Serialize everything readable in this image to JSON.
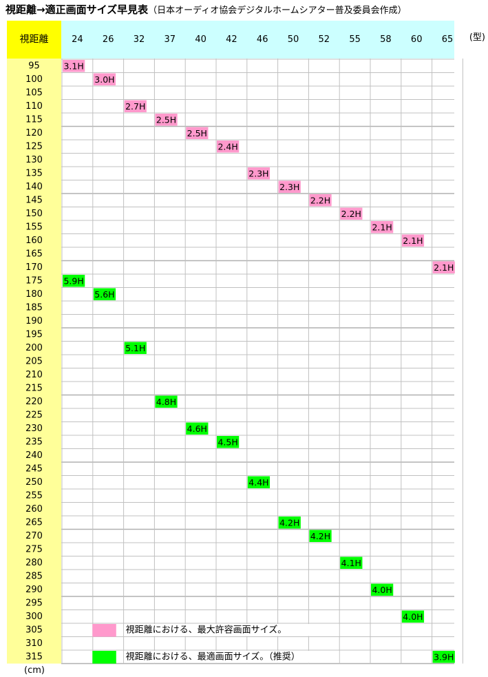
{
  "title": {
    "main": "視距離→適正画面サイズ早見表",
    "sub": "（日本オーディオ協会デジタルホームシアター普及委員会作成）"
  },
  "chart_data": {
    "type": "table",
    "corner_label": "視距離",
    "columns": [
      "24",
      "26",
      "32",
      "37",
      "40",
      "42",
      "46",
      "50",
      "52",
      "55",
      "58",
      "60",
      "65"
    ],
    "column_unit": "(型)",
    "rows": [
      "95",
      "100",
      "105",
      "110",
      "115",
      "120",
      "125",
      "130",
      "135",
      "140",
      "145",
      "150",
      "155",
      "160",
      "165",
      "170",
      "175",
      "180",
      "185",
      "190",
      "195",
      "200",
      "205",
      "210",
      "215",
      "220",
      "225",
      "230",
      "235",
      "240",
      "245",
      "250",
      "255",
      "260",
      "265",
      "270",
      "275",
      "280",
      "285",
      "290",
      "295",
      "300",
      "305",
      "310",
      "315"
    ],
    "row_unit": "(cm)",
    "max_cells": [
      {
        "row": "95",
        "col": "24",
        "label": "3.1H"
      },
      {
        "row": "100",
        "col": "26",
        "label": "3.0H"
      },
      {
        "row": "110",
        "col": "32",
        "label": "2.7H"
      },
      {
        "row": "115",
        "col": "37",
        "label": "2.5H"
      },
      {
        "row": "120",
        "col": "40",
        "label": "2.5H"
      },
      {
        "row": "125",
        "col": "42",
        "label": "2.4H"
      },
      {
        "row": "135",
        "col": "46",
        "label": "2.3H"
      },
      {
        "row": "140",
        "col": "50",
        "label": "2.3H"
      },
      {
        "row": "145",
        "col": "52",
        "label": "2.2H"
      },
      {
        "row": "150",
        "col": "55",
        "label": "2.2H"
      },
      {
        "row": "155",
        "col": "58",
        "label": "2.1H"
      },
      {
        "row": "160",
        "col": "60",
        "label": "2.1H"
      },
      {
        "row": "170",
        "col": "65",
        "label": "2.1H"
      }
    ],
    "optimal_cells": [
      {
        "row": "175",
        "col": "24",
        "label": "5.9H"
      },
      {
        "row": "180",
        "col": "26",
        "label": "5.6H"
      },
      {
        "row": "200",
        "col": "32",
        "label": "5.1H"
      },
      {
        "row": "220",
        "col": "37",
        "label": "4.8H"
      },
      {
        "row": "230",
        "col": "40",
        "label": "4.6H"
      },
      {
        "row": "235",
        "col": "42",
        "label": "4.5H"
      },
      {
        "row": "250",
        "col": "46",
        "label": "4.4H"
      },
      {
        "row": "265",
        "col": "50",
        "label": "4.2H"
      },
      {
        "row": "270",
        "col": "52",
        "label": "4.2H"
      },
      {
        "row": "280",
        "col": "55",
        "label": "4.1H"
      },
      {
        "row": "290",
        "col": "58",
        "label": "4.0H"
      },
      {
        "row": "300",
        "col": "60",
        "label": "4.0H"
      },
      {
        "row": "315",
        "col": "65",
        "label": "3.9H"
      }
    ],
    "legend": [
      {
        "label": "視距離における、最大許容画面サイズ。",
        "color": "#ff99cc"
      },
      {
        "label": "視距離における、最適画面サイズ。（推奨）",
        "color": "#00ff00"
      }
    ],
    "colors": {
      "max": "#ff99cc",
      "optimal": "#00ff00",
      "header_bg": "#ccffff",
      "corner_bg": "#ffff00",
      "row_header_bg": "#ffff99",
      "grid": "#c0c0c0"
    }
  }
}
